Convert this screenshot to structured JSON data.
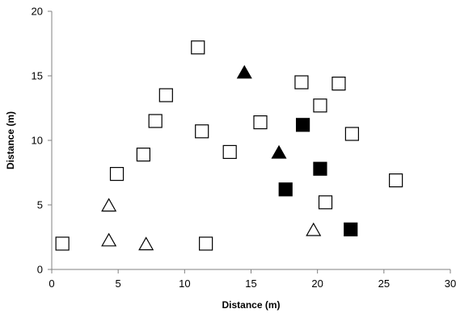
{
  "chart_data": {
    "type": "scatter",
    "title": "",
    "xlabel": "Distance (m)",
    "ylabel": "Distance (m)",
    "xlim": [
      0,
      30
    ],
    "ylim": [
      0,
      20
    ],
    "xticks": [
      0,
      5,
      10,
      15,
      20,
      25,
      30
    ],
    "yticks": [
      0,
      5,
      10,
      15,
      20
    ],
    "grid": false,
    "legend": "none",
    "series": [
      {
        "marker": "open-square",
        "color": "#000000",
        "points": [
          [
            0.8,
            2.0
          ],
          [
            4.9,
            7.4
          ],
          [
            6.9,
            8.9
          ],
          [
            7.8,
            11.5
          ],
          [
            8.6,
            13.5
          ],
          [
            11.0,
            17.2
          ],
          [
            11.3,
            10.7
          ],
          [
            11.6,
            2.0
          ],
          [
            13.4,
            9.1
          ],
          [
            15.7,
            11.4
          ],
          [
            18.8,
            14.5
          ],
          [
            20.2,
            12.7
          ],
          [
            20.6,
            5.2
          ],
          [
            21.6,
            14.4
          ],
          [
            22.6,
            10.5
          ],
          [
            25.9,
            6.9
          ]
        ]
      },
      {
        "marker": "filled-square",
        "color": "#000000",
        "points": [
          [
            17.6,
            6.2
          ],
          [
            18.9,
            11.2
          ],
          [
            20.2,
            7.8
          ],
          [
            22.5,
            3.1
          ]
        ]
      },
      {
        "marker": "open-triangle",
        "color": "#000000",
        "points": [
          [
            4.3,
            4.9
          ],
          [
            4.3,
            2.2
          ],
          [
            7.1,
            1.9
          ],
          [
            19.7,
            3.0
          ]
        ]
      },
      {
        "marker": "filled-triangle",
        "color": "#000000",
        "points": [
          [
            14.5,
            15.2
          ],
          [
            17.1,
            9.0
          ]
        ]
      }
    ]
  }
}
